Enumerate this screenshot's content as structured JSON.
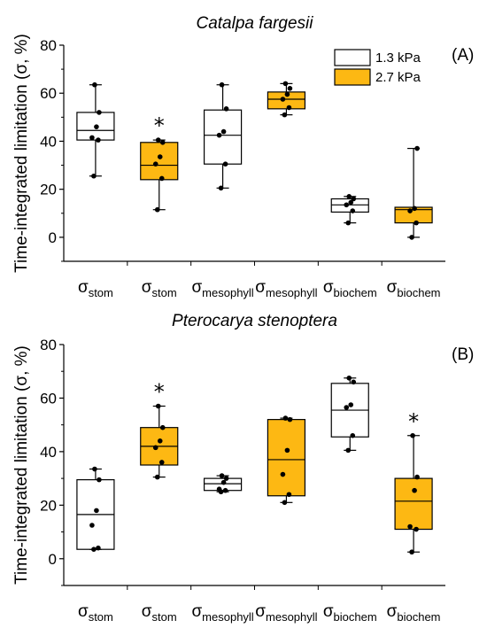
{
  "chart_data": [
    {
      "type": "box",
      "title": "Catalpa fargesii",
      "panel_label": "(A)",
      "ylabel": "Time-integrated limitation (σ, %)",
      "ylim": [
        -10,
        80
      ],
      "yticks": [
        0,
        20,
        40,
        60,
        80
      ],
      "categories": [
        {
          "symbol": "σ",
          "sub": "stom"
        },
        {
          "symbol": "σ",
          "sub": "stom"
        },
        {
          "symbol": "σ",
          "sub": "mesophyll"
        },
        {
          "symbol": "σ",
          "sub": "mesophyll"
        },
        {
          "symbol": "σ",
          "sub": "biochem"
        },
        {
          "symbol": "σ",
          "sub": "biochem"
        }
      ],
      "legend": [
        {
          "label": "1.3 kPa",
          "color": "#ffffff"
        },
        {
          "label": "2.7 kPa",
          "color": "#fdb813"
        }
      ],
      "boxes": [
        {
          "series": "1.3 kPa",
          "q1": 40.5,
          "median": 44.5,
          "q3": 52,
          "whisker_low": 25.5,
          "whisker_high": 63.5,
          "points": [
            25.5,
            40.5,
            41.5,
            46,
            52,
            63.5
          ],
          "significant": false
        },
        {
          "series": "2.7 kPa",
          "q1": 24,
          "median": 30,
          "q3": 39.5,
          "whisker_low": 11.5,
          "whisker_high": 40.5,
          "points": [
            11.5,
            24.5,
            30.5,
            33.5,
            39.5,
            40.5
          ],
          "significant": true
        },
        {
          "series": "1.3 kPa",
          "q1": 30.5,
          "median": 42.5,
          "q3": 53,
          "whisker_low": 20.5,
          "whisker_high": 63.5,
          "points": [
            20.5,
            30.5,
            42.5,
            44,
            53.5,
            63.5
          ],
          "significant": false
        },
        {
          "series": "2.7 kPa",
          "q1": 53.5,
          "median": 57.5,
          "q3": 60.5,
          "whisker_low": 51,
          "whisker_high": 64,
          "points": [
            51,
            54,
            57.5,
            59.5,
            62,
            64
          ],
          "significant": false
        },
        {
          "series": "1.3 kPa",
          "q1": 10.5,
          "median": 13.5,
          "q3": 16,
          "whisker_low": 6,
          "whisker_high": 17,
          "points": [
            6,
            11,
            13.5,
            14.5,
            16,
            17
          ],
          "significant": false
        },
        {
          "series": "2.7 kPa",
          "q1": 6,
          "median": 11.5,
          "q3": 12.5,
          "whisker_low": 0,
          "whisker_high": 37,
          "points": [
            0,
            6,
            11,
            12,
            37
          ],
          "significant": false
        }
      ],
      "significance_marker": "*"
    },
    {
      "type": "box",
      "title": "Pterocarya stenoptera",
      "panel_label": "(B)",
      "ylabel": "Time-integrated limitation (σ, %)",
      "ylim": [
        -10,
        80
      ],
      "yticks": [
        0,
        20,
        40,
        60,
        80
      ],
      "categories": [
        {
          "symbol": "σ",
          "sub": "stom"
        },
        {
          "symbol": "σ",
          "sub": "stom"
        },
        {
          "symbol": "σ",
          "sub": "mesophyll"
        },
        {
          "symbol": "σ",
          "sub": "mesophyll"
        },
        {
          "symbol": "σ",
          "sub": "biochem"
        },
        {
          "symbol": "σ",
          "sub": "biochem"
        }
      ],
      "boxes": [
        {
          "series": "1.3 kPa",
          "q1": 3.5,
          "median": 16.5,
          "q3": 29.5,
          "whisker_low": 3.5,
          "whisker_high": 33.5,
          "points": [
            3.5,
            4,
            12.5,
            18,
            29.5,
            33.5
          ],
          "significant": false
        },
        {
          "series": "2.7 kPa",
          "q1": 35,
          "median": 42,
          "q3": 49,
          "whisker_low": 30.5,
          "whisker_high": 57,
          "points": [
            30.5,
            36,
            41.5,
            44,
            49,
            57
          ],
          "significant": true
        },
        {
          "series": "1.3 kPa",
          "q1": 25.5,
          "median": 28,
          "q3": 30,
          "whisker_low": 25,
          "whisker_high": 31,
          "points": [
            25,
            25.5,
            26,
            28.5,
            30,
            31
          ],
          "significant": false
        },
        {
          "series": "2.7 kPa",
          "q1": 23.5,
          "median": 37,
          "q3": 52,
          "whisker_low": 21,
          "whisker_high": 52.5,
          "points": [
            21,
            24,
            31.5,
            40.5,
            52,
            52.5
          ],
          "significant": false
        },
        {
          "series": "1.3 kPa",
          "q1": 45.5,
          "median": 55.5,
          "q3": 65.5,
          "whisker_low": 40.5,
          "whisker_high": 67.5,
          "points": [
            40.5,
            46,
            56.5,
            57.5,
            66,
            67.5
          ],
          "significant": false
        },
        {
          "series": "2.7 kPa",
          "q1": 11,
          "median": 21.5,
          "q3": 30,
          "whisker_low": 2.5,
          "whisker_high": 46,
          "points": [
            2.5,
            11,
            12,
            25.5,
            30.5,
            46
          ],
          "significant": true
        }
      ],
      "significance_marker": "*"
    }
  ]
}
